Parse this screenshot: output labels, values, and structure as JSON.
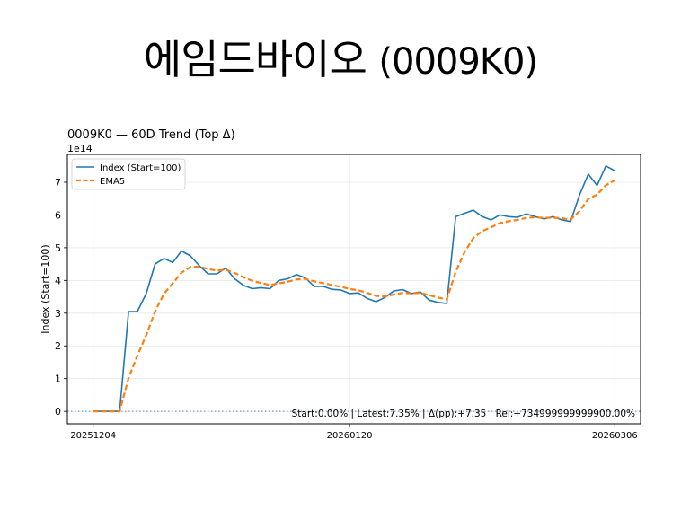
{
  "slide": {
    "title_name": "에임드바이오",
    "title_code": "(0009K0)"
  },
  "chart_data": {
    "type": "line",
    "title": "0009K0 — 60D Trend (Top Δ)",
    "ylabel": "Index (Start=100)",
    "xlabel": "",
    "y_multiplier_label": "1e14",
    "y_multiplier": 100000000000000.0,
    "ylim": [
      -38000000000000.0,
      785000000000000.0
    ],
    "yticks": [
      0,
      100000000000000.0,
      200000000000000.0,
      300000000000000.0,
      400000000000000.0,
      500000000000000.0,
      600000000000000.0,
      700000000000000.0
    ],
    "ytick_labels": [
      "0",
      "1",
      "2",
      "3",
      "4",
      "5",
      "6",
      "7"
    ],
    "xticks": [
      {
        "index": 0,
        "label": "20251204"
      },
      {
        "index": 29,
        "label": "20260120"
      },
      {
        "index": 59,
        "label": "20260306"
      }
    ],
    "grid": true,
    "legend_position": "upper left",
    "baseline": 0,
    "annotation": "Start:0.00% | Latest:7.35% | Δ(pp):+7.35 | Rel:+734999999999900.00%",
    "series": [
      {
        "name": "Index (Start=100)",
        "color": "#1f77b4",
        "style": "solid",
        "values": [
          0,
          0,
          0,
          0,
          305000000000000.0,
          305000000000000.0,
          360000000000000.0,
          450000000000000.0,
          467000000000000.0,
          455000000000000.0,
          490000000000000.0,
          475000000000000.0,
          445000000000000.0,
          420000000000000.0,
          420000000000000.0,
          438000000000000.0,
          405000000000000.0,
          385000000000000.0,
          375000000000000.0,
          378000000000000.0,
          375000000000000.0,
          400000000000000.0,
          405000000000000.0,
          418000000000000.0,
          408000000000000.0,
          382000000000000.0,
          382000000000000.0,
          373000000000000.0,
          371000000000000.0,
          360000000000000.0,
          362000000000000.0,
          345000000000000.0,
          335000000000000.0,
          348000000000000.0,
          368000000000000.0,
          372000000000000.0,
          360000000000000.0,
          365000000000000.0,
          340000000000000.0,
          333000000000000.0,
          330000000000000.0,
          595000000000000.0,
          605000000000000.0,
          615000000000000.0,
          595000000000000.0,
          585000000000000.0,
          600000000000000.0,
          595000000000000.0,
          593000000000000.0,
          603000000000000.0,
          595000000000000.0,
          588000000000000.0,
          595000000000000.0,
          585000000000000.0,
          580000000000000.0,
          660000000000000.0,
          725000000000000.0,
          690000000000000.0,
          750000000000000.0,
          735000000000000.0
        ]
      },
      {
        "name": "EMA5",
        "color": "#ff7f0e",
        "style": "dashed",
        "values": [
          0,
          0,
          0,
          0,
          102000000000000.0,
          170000000000000.0,
          233000000000000.0,
          305000000000000.0,
          359000000000000.0,
          391000000000000.0,
          424000000000000.0,
          441000000000000.0,
          442000000000000.0,
          435000000000000.0,
          430000000000000.0,
          433000000000000.0,
          423000000000000.0,
          410000000000000.0,
          399000000000000.0,
          392000000000000.0,
          386000000000000.0,
          391000000000000.0,
          396000000000000.0,
          403000000000000.0,
          405000000000000.0,
          397000000000000.0,
          392000000000000.0,
          386000000000000.0,
          381000000000000.0,
          374000000000000.0,
          370000000000000.0,
          362000000000000.0,
          353000000000000.0,
          351000000000000.0,
          357000000000000.0,
          362000000000000.0,
          361000000000000.0,
          362000000000000.0,
          355000000000000.0,
          348000000000000.0,
          342000000000000.0,
          426000000000000.0,
          486000000000000.0,
          529000000000000.0,
          551000000000000.0,
          562000000000000.0,
          575000000000000.0,
          581000000000000.0,
          585000000000000.0,
          591000000000000.0,
          593000000000000.0,
          591000000000000.0,
          592000000000000.0,
          590000000000000.0,
          586000000000000.0,
          611000000000000.0,
          649000000000000.0,
          662000000000000.0,
          691000000000000.0,
          706000000000000.0
        ]
      }
    ]
  }
}
